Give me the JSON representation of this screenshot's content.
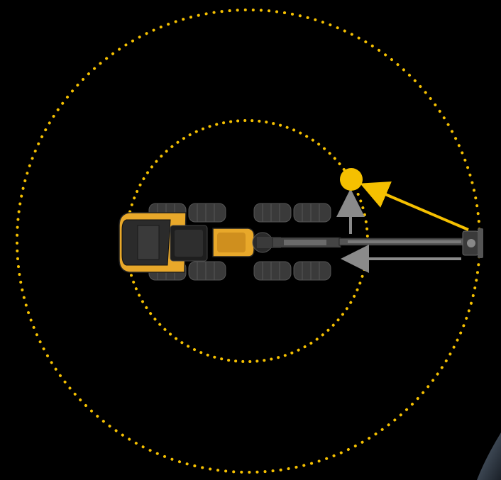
{
  "colors": {
    "background": "#000000",
    "accent": "#f5c000",
    "arrow_gray": "#8a8a8a",
    "machine_yellow": "#e8a82a",
    "machine_dark": "#2a2a2a",
    "tire": "#3a3a3a"
  },
  "diagram": {
    "elements": [
      "outer-reach-circle",
      "inner-reach-circle",
      "harvester-machine-top-view",
      "target-point",
      "gray-retract-arrow",
      "gray-lift-arrow",
      "yellow-direct-path-arrow"
    ]
  }
}
